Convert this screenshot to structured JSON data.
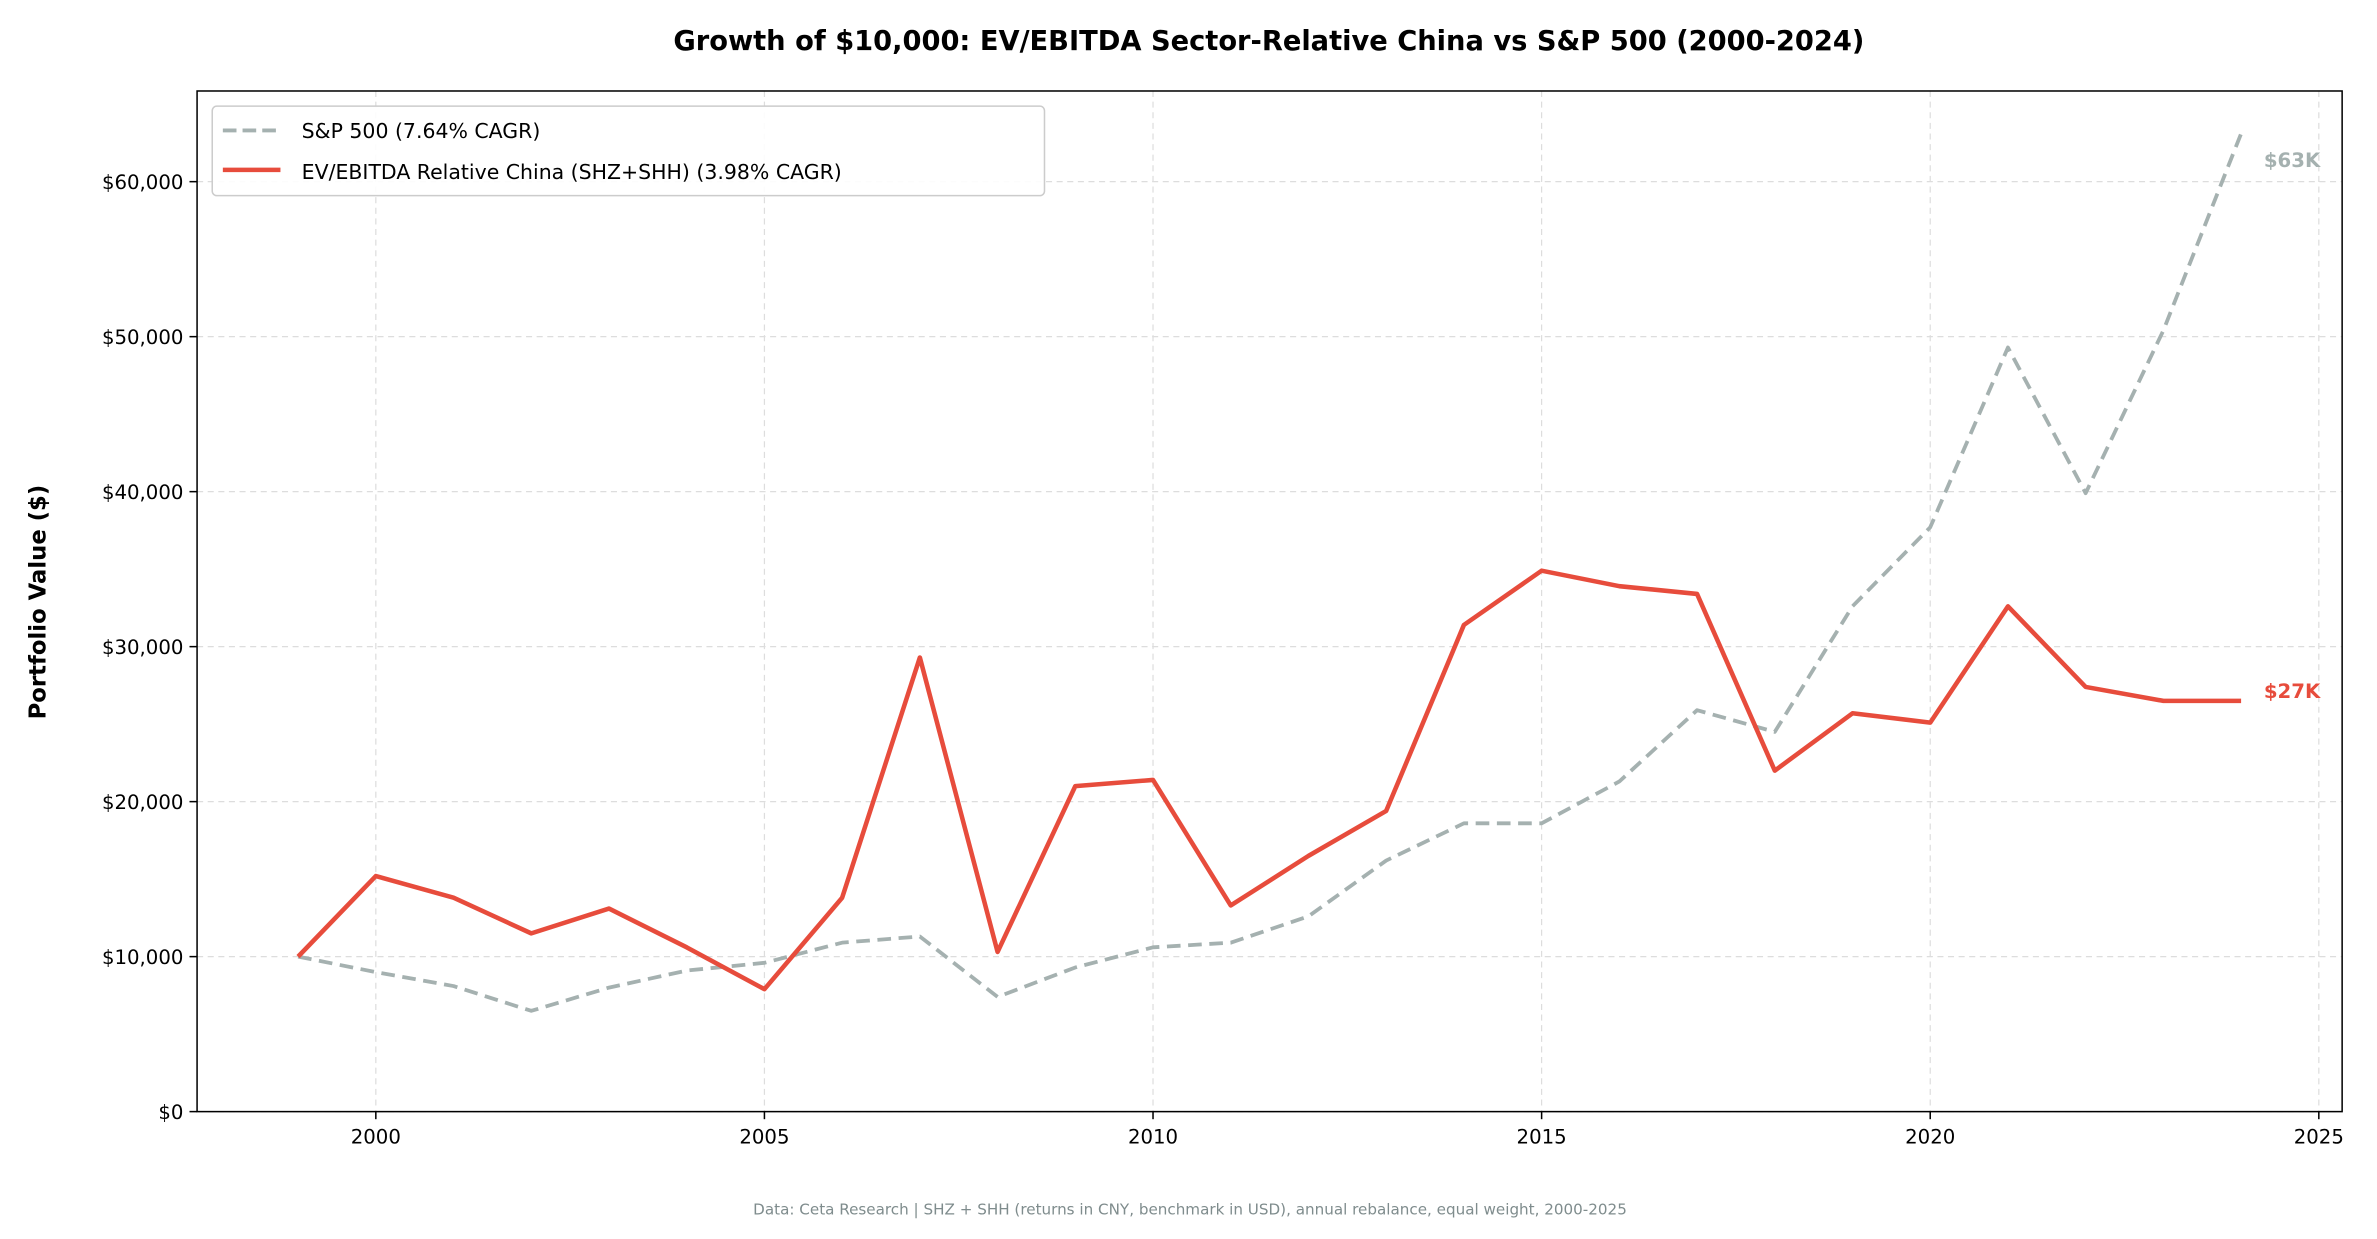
{
  "chart_data": {
    "type": "line",
    "title": "Growth of $10,000: EV/EBITDA Sector-Relative China vs S&P 500 (2000-2024)",
    "xlabel": "",
    "ylabel": "Portfolio Value ($)",
    "footnote": "Data: Ceta Research | SHZ + SHH (returns in CNY, benchmark in USD), annual rebalance, equal weight, 2000-2025",
    "xlim": [
      1997.7,
      2025.3
    ],
    "ylim": [
      0,
      65850
    ],
    "x_ticks": [
      2000,
      2005,
      2010,
      2015,
      2020,
      2025
    ],
    "x_tick_labels": [
      "2000",
      "2005",
      "2010",
      "2015",
      "2020",
      "2025"
    ],
    "y_ticks": [
      0,
      10000,
      20000,
      30000,
      40000,
      50000,
      60000
    ],
    "y_tick_labels": [
      "$0",
      "$10,000",
      "$20,000",
      "$30,000",
      "$40,000",
      "$50,000",
      "$60,000"
    ],
    "grid": true,
    "legend_position": "top-left",
    "x": [
      1999,
      2000,
      2001,
      2002,
      2003,
      2004,
      2005,
      2006,
      2007,
      2008,
      2009,
      2010,
      2011,
      2012,
      2013,
      2014,
      2015,
      2016,
      2017,
      2018,
      2019,
      2020,
      2021,
      2022,
      2023,
      2024
    ],
    "series": [
      {
        "name": "S&P 500 (7.64% CAGR)",
        "color": "#a5b1b0",
        "style": "dashed",
        "end_label": "$63K",
        "values": [
          10000,
          9000,
          8100,
          6500,
          8000,
          9100,
          9600,
          10900,
          11300,
          7400,
          9300,
          10600,
          10900,
          12600,
          16200,
          18600,
          18600,
          21300,
          25900,
          24500,
          32600,
          37700,
          49300,
          39900,
          50400,
          63100
        ]
      },
      {
        "name": "EV/EBITDA Relative China (SHZ+SHH) (3.98% CAGR)",
        "color": "#e74c3c",
        "style": "solid",
        "end_label": "$27K",
        "values": [
          10000,
          15200,
          13800,
          11500,
          13100,
          10600,
          7900,
          13800,
          29300,
          10300,
          21000,
          21400,
          13300,
          16500,
          19400,
          31400,
          34900,
          33900,
          33400,
          22000,
          25700,
          25100,
          32600,
          27400,
          26500,
          26500
        ]
      }
    ]
  }
}
